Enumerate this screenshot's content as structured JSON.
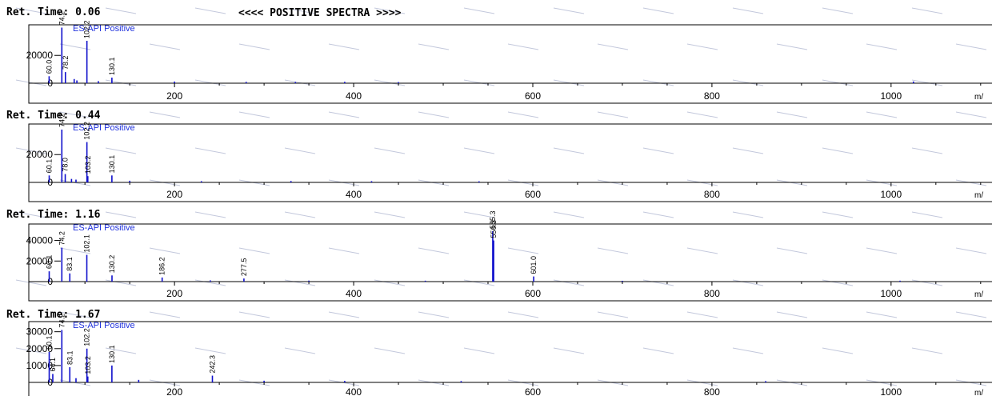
{
  "header_title": "<<<< POSITIVE SPECTRA >>>>",
  "panel_prefix": "Ret. Time: ",
  "mode_label": "ES-API Positive",
  "x_unit": "m/",
  "colors": {
    "peaks": "#1010cc",
    "mode_label": "#2233dd",
    "frame": "#000000",
    "text": "#000000",
    "watermark": "#c3c8dc"
  },
  "chart_data": [
    {
      "type": "bar",
      "title": "Ret. Time: 0.06",
      "ret_time": "0.06",
      "xlabel": "m/",
      "ylabel": "",
      "xlim": [
        40,
        1110
      ],
      "ylim": [
        0,
        42000
      ],
      "grid": false,
      "x_ticks": [
        200,
        400,
        600,
        800,
        1000
      ],
      "y_ticks": [
        0,
        20000
      ],
      "peaks": [
        {
          "x": 60.0,
          "y": 5000,
          "label": "60.0"
        },
        {
          "x": 74.2,
          "y": 40000,
          "label": "74.2"
        },
        {
          "x": 78.2,
          "y": 8000,
          "label": "78.2"
        },
        {
          "x": 102.2,
          "y": 30500,
          "label": "102.2"
        },
        {
          "x": 130.1,
          "y": 4000,
          "label": "130.1"
        },
        {
          "x": 88,
          "y": 3000
        },
        {
          "x": 91,
          "y": 2000
        },
        {
          "x": 115,
          "y": 1500
        },
        {
          "x": 200,
          "y": 1200
        },
        {
          "x": 280,
          "y": 1000
        },
        {
          "x": 335,
          "y": 900
        },
        {
          "x": 390,
          "y": 1000
        },
        {
          "x": 450,
          "y": 800
        },
        {
          "x": 1025,
          "y": 1200
        }
      ]
    },
    {
      "type": "bar",
      "title": "Ret. Time: 0.44",
      "ret_time": "0.44",
      "xlabel": "m/",
      "ylabel": "",
      "xlim": [
        40,
        1110
      ],
      "ylim": [
        0,
        42000
      ],
      "grid": false,
      "x_ticks": [
        200,
        400,
        600,
        800,
        1000
      ],
      "y_ticks": [
        0,
        20000
      ],
      "peaks": [
        {
          "x": 60.1,
          "y": 5000,
          "label": "60.1"
        },
        {
          "x": 74.2,
          "y": 38000,
          "label": "74.2"
        },
        {
          "x": 78.0,
          "y": 6000,
          "label": "78.0"
        },
        {
          "x": 102.2,
          "y": 29000,
          "label": "102.2"
        },
        {
          "x": 103.2,
          "y": 4500,
          "label": "103.2"
        },
        {
          "x": 130.1,
          "y": 5000,
          "label": "130.1"
        },
        {
          "x": 85,
          "y": 2500
        },
        {
          "x": 90,
          "y": 2000
        },
        {
          "x": 150,
          "y": 1200
        },
        {
          "x": 230,
          "y": 900
        },
        {
          "x": 330,
          "y": 1000
        },
        {
          "x": 420,
          "y": 900
        },
        {
          "x": 540,
          "y": 800
        }
      ]
    },
    {
      "type": "bar",
      "title": "Ret. Time: 1.16",
      "ret_time": "1.16",
      "xlabel": "m/",
      "ylabel": "",
      "xlim": [
        40,
        1110
      ],
      "ylim": [
        0,
        56000
      ],
      "grid": false,
      "x_ticks": [
        200,
        400,
        600,
        800,
        1000
      ],
      "y_ticks": [
        0,
        20000,
        40000
      ],
      "peaks": [
        {
          "x": 60.1,
          "y": 10000,
          "label": "60.1"
        },
        {
          "x": 74.2,
          "y": 33000,
          "label": "74.2"
        },
        {
          "x": 83.1,
          "y": 8000,
          "label": "83.1"
        },
        {
          "x": 102.1,
          "y": 26000,
          "label": "102.1"
        },
        {
          "x": 130.2,
          "y": 6000,
          "label": "130.2"
        },
        {
          "x": 186.2,
          "y": 4000,
          "label": "186.2"
        },
        {
          "x": 277.5,
          "y": 3000,
          "label": "277.5"
        },
        {
          "x": 555.3,
          "y": 49000,
          "label": "555.3"
        },
        {
          "x": 556.3,
          "y": 40000,
          "label": "556.3"
        },
        {
          "x": 601.0,
          "y": 5000,
          "label": "601.0"
        },
        {
          "x": 240,
          "y": 1200
        },
        {
          "x": 350,
          "y": 1000
        },
        {
          "x": 480,
          "y": 900
        },
        {
          "x": 700,
          "y": 800
        },
        {
          "x": 1010,
          "y": 900
        }
      ]
    },
    {
      "type": "bar",
      "title": "Ret. Time: 1.67",
      "ret_time": "1.67",
      "xlabel": "m/",
      "ylabel": "",
      "xlim": [
        40,
        1110
      ],
      "ylim": [
        0,
        36000
      ],
      "grid": false,
      "x_ticks": [
        200,
        400,
        600,
        800,
        1000
      ],
      "y_ticks": [
        0,
        10000,
        20000,
        30000
      ],
      "peaks": [
        {
          "x": 60.1,
          "y": 18000,
          "label": "60.1"
        },
        {
          "x": 64.1,
          "y": 5000,
          "label": "64.1"
        },
        {
          "x": 74.2,
          "y": 31000,
          "label": "74.2"
        },
        {
          "x": 83.1,
          "y": 9000,
          "label": "83.1"
        },
        {
          "x": 102.2,
          "y": 20000,
          "label": "102.2"
        },
        {
          "x": 103.2,
          "y": 3500,
          "label": "103.2"
        },
        {
          "x": 130.1,
          "y": 10000,
          "label": "130.1"
        },
        {
          "x": 242.3,
          "y": 4000,
          "label": "242.3"
        },
        {
          "x": 90,
          "y": 2500
        },
        {
          "x": 160,
          "y": 1500
        },
        {
          "x": 300,
          "y": 1000
        },
        {
          "x": 390,
          "y": 900
        },
        {
          "x": 520,
          "y": 800
        },
        {
          "x": 860,
          "y": 800
        }
      ]
    }
  ]
}
